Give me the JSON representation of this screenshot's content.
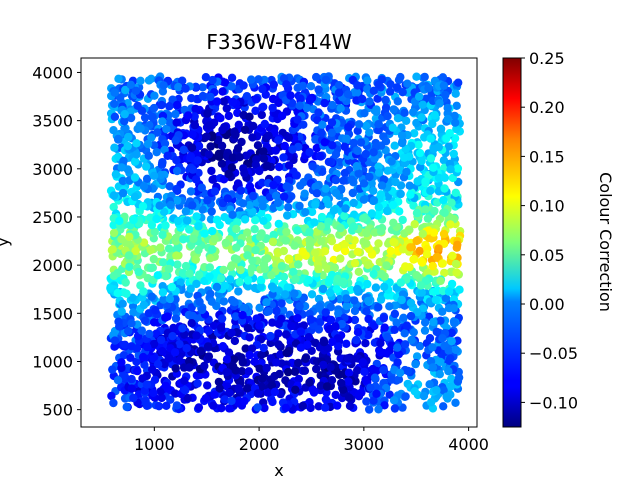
{
  "chart_data": {
    "type": "scatter",
    "title": "F336W-F814W",
    "xlabel": "x",
    "ylabel": "y",
    "xlim": [
      300,
      4080
    ],
    "ylim": [
      320,
      4150
    ],
    "xticks": [
      1000,
      2000,
      3000,
      4000
    ],
    "yticks": [
      500,
      1000,
      1500,
      2000,
      2500,
      3000,
      3500,
      4000
    ],
    "grid": false,
    "colorbar": {
      "label": "Colour Correction",
      "colormap": "jet",
      "range": [
        -0.125,
        0.25
      ],
      "ticks": [
        -0.1,
        -0.05,
        0.0,
        0.05,
        0.1,
        0.15,
        0.2,
        0.25
      ],
      "tick_labels": [
        "−0.10",
        "−0.05",
        "0.00",
        "0.05",
        "0.10",
        "0.15",
        "0.20",
        "0.25"
      ]
    },
    "points": {
      "count": 3400,
      "x_range": [
        580,
        3920
      ],
      "y_range": [
        500,
        3960
      ],
      "color_value_range": [
        -0.125,
        0.25
      ],
      "pattern": "Colour correction peaks (about 0.05 to 0.25) in a horizontal band near y = 2000-2300, strongest at the right edge near x = 3700; upper-right and lower-right corners are moderate (~0 to 0.1); darkest values (about -0.10 to -0.12) in the upper-middle region near x = 1600-2000, y = 2900-3500 and along the bottom near x = 1000-2600, y = 500-1400."
    }
  }
}
